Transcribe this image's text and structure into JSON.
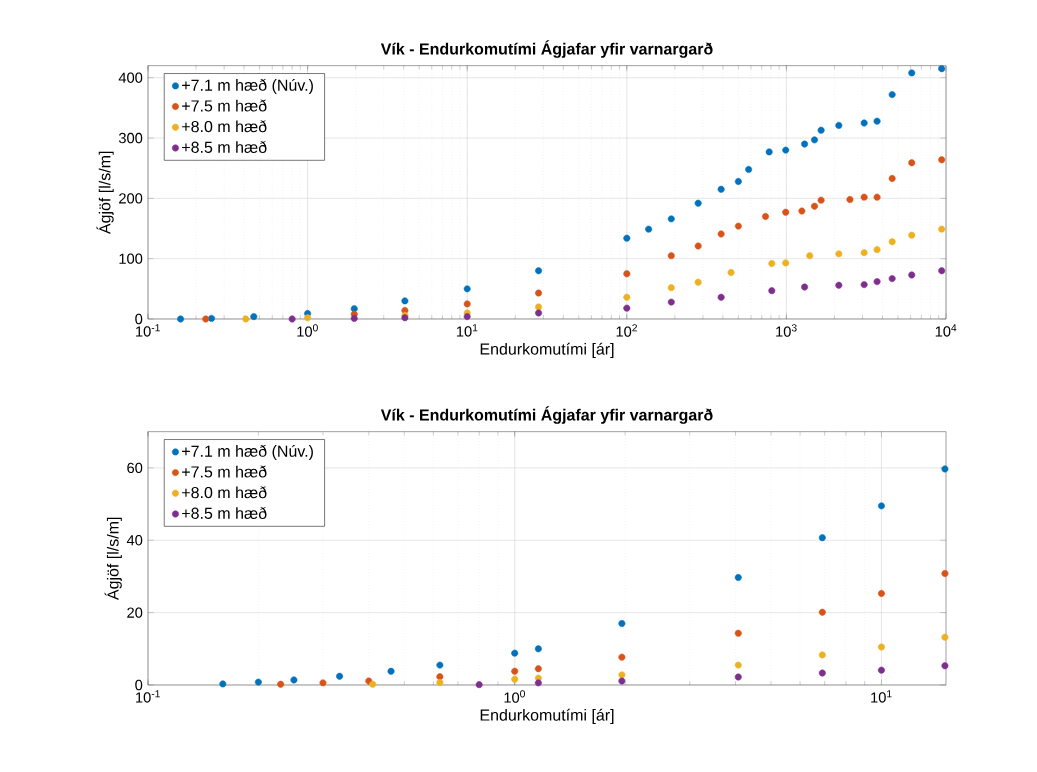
{
  "chart_data": [
    {
      "type": "scatter",
      "title": "Vík - Endurkomutími Ágjafar yfir varnargarð",
      "xlabel": "Endurkomutími [ár]",
      "ylabel": "Ágjöf [l/s/m]",
      "log": "x",
      "grid": true,
      "legend": "top left",
      "marker": "circle",
      "xlim": [
        0.1,
        10000
      ],
      "ylim": [
        0,
        420
      ],
      "xticks": [
        {
          "value": 0.1,
          "label": "10$^{-1}$"
        },
        {
          "value": 1,
          "label": "10$^{0}$"
        },
        {
          "value": 10,
          "label": "10$^{1}$"
        },
        {
          "value": 100,
          "label": "10$^{2}$"
        },
        {
          "value": 1000,
          "label": "10$^{3}$"
        },
        {
          "value": 10000,
          "label": "10$^{4}$"
        }
      ],
      "yticks": [
        0,
        100,
        200,
        300,
        400
      ],
      "series": [
        {
          "name": "+7.1 m hæð (Núv.)",
          "color": "#0072bd",
          "x": [
            0.16,
            0.25,
            0.46,
            1.0,
            1.96,
            4.07,
            10,
            28,
            100,
            137,
            190,
            280,
            390,
            500,
            580,
            780,
            990,
            1300,
            1500,
            1650,
            2130,
            3070,
            3700,
            4600,
            6100,
            9400
          ],
          "values": [
            0,
            1,
            4,
            9,
            17,
            30,
            50,
            80,
            134,
            149,
            166,
            192,
            215,
            228,
            248,
            277,
            280,
            290,
            297,
            313,
            321,
            325,
            328,
            372,
            408,
            415
          ]
        },
        {
          "name": "+7.5 m hæð",
          "color": "#d95319",
          "x": [
            0.23,
            0.4,
            1.0,
            1.96,
            4.07,
            10,
            28,
            100,
            190,
            280,
            390,
            500,
            740,
            990,
            1250,
            1500,
            1650,
            2500,
            3070,
            3700,
            4600,
            6100,
            9400
          ],
          "values": [
            0,
            null,
            null,
            8,
            14,
            25,
            43,
            75,
            105,
            121,
            141,
            154,
            170,
            177,
            179,
            187,
            197,
            198,
            202,
            202,
            233,
            259,
            264
          ]
        },
        {
          "name": "+8.0 m hæð",
          "color": "#edb120",
          "x": [
            0.41,
            1.0,
            1.96,
            4.07,
            10,
            28,
            100,
            190,
            280,
            450,
            810,
            990,
            1400,
            2130,
            3070,
            3700,
            4600,
            6100,
            9400
          ],
          "values": [
            0,
            2,
            null,
            6,
            10,
            20,
            36,
            52,
            61,
            77,
            92,
            93,
            105,
            108,
            110,
            115,
            128,
            139,
            149
          ]
        },
        {
          "name": "+8.5 m hæð",
          "color": "#7e2f8e",
          "x": [
            0.8,
            1.96,
            4.07,
            10,
            28,
            100,
            190,
            390,
            810,
            1300,
            2130,
            3070,
            3700,
            4600,
            6100,
            9400
          ],
          "values": [
            0,
            1,
            2,
            4,
            10,
            18,
            28,
            36,
            47,
            53,
            56,
            57,
            62,
            67,
            73,
            80
          ]
        }
      ]
    },
    {
      "type": "scatter",
      "title": "Vík - Endurkomutími Ágjafar yfir varnargarð",
      "xlabel": "Endurkomutími [ár]",
      "ylabel": "Ágjöf [l/s/m]",
      "log": "x",
      "grid": true,
      "legend": "top left",
      "marker": "circle",
      "xlim": [
        0.1,
        15
      ],
      "ylim": [
        0,
        70
      ],
      "xticks": [
        {
          "value": 0.1,
          "label": "10$^{-1}$"
        },
        {
          "value": 1,
          "label": "10$^{0}$"
        },
        {
          "value": 10,
          "label": "10$^{1}$"
        }
      ],
      "yticks": [
        0,
        20,
        40,
        60
      ],
      "series": [
        {
          "name": "+7.1 m hæð (Núv.)",
          "color": "#0072bd",
          "x": [
            0.16,
            0.2,
            0.25,
            0.333,
            0.46,
            0.625,
            1.0,
            1.16,
            1.96,
            4.07,
            6.9,
            10,
            14.9
          ],
          "values": [
            0.3,
            0.8,
            1.4,
            2.4,
            3.8,
            5.5,
            8.8,
            10.0,
            17,
            29.7,
            40.7,
            49.5,
            59.7
          ]
        },
        {
          "name": "+7.5 m hæð",
          "color": "#d95319",
          "x": [
            0.23,
            0.3,
            0.4,
            0.625,
            1.0,
            1.16,
            1.96,
            4.07,
            6.9,
            10,
            14.9
          ],
          "values": [
            0.2,
            0.6,
            1.1,
            2.3,
            3.8,
            4.5,
            7.7,
            14.3,
            20.1,
            25.3,
            30.8
          ]
        },
        {
          "name": "+8.0 m hæð",
          "color": "#edb120",
          "x": [
            0.41,
            0.625,
            1.0,
            1.16,
            1.96,
            4.07,
            6.9,
            10,
            14.9
          ],
          "values": [
            0.2,
            0.7,
            1.6,
            1.9,
            2.8,
            5.5,
            8.3,
            10.5,
            13.2
          ]
        },
        {
          "name": "+8.5 m hæð",
          "color": "#7e2f8e",
          "x": [
            0.8,
            1.16,
            1.96,
            4.07,
            6.9,
            10,
            14.9
          ],
          "values": [
            0.1,
            0.6,
            1.1,
            2.2,
            3.3,
            4.1,
            5.3
          ]
        }
      ]
    }
  ]
}
